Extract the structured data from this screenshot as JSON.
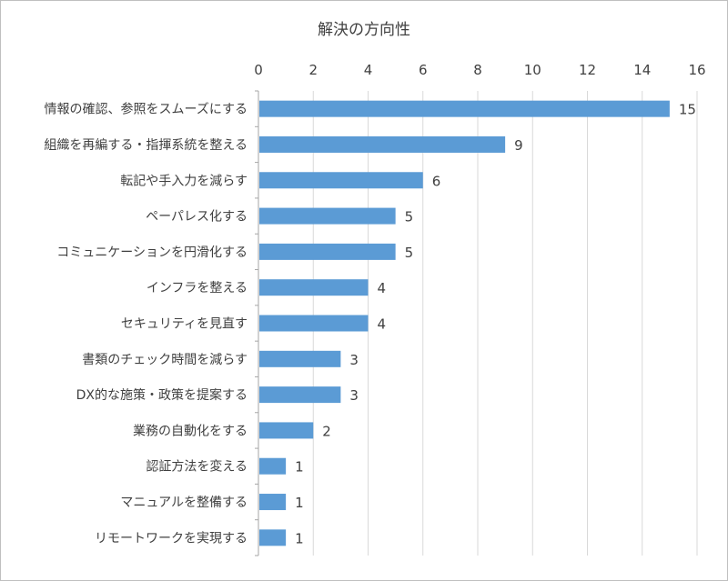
{
  "chart_data": {
    "type": "bar",
    "orientation": "horizontal",
    "title": "解決の方向性",
    "xlabel": "",
    "ylabel": "",
    "xlim": [
      0,
      16
    ],
    "ticks": [
      "0",
      "2",
      "4",
      "6",
      "8",
      "10",
      "12",
      "14",
      "16"
    ],
    "tick_values": [
      0,
      2,
      4,
      6,
      8,
      10,
      12,
      14,
      16
    ],
    "grid": true,
    "legend": "none",
    "bar_color": "#5b9bd5",
    "axis_position": "top",
    "data_labels": true,
    "categories": [
      "情報の確認、参照をスムーズにする",
      "組織を再編する・指揮系統を整える",
      "転記や手入力を減らす",
      "ペーパレス化する",
      "コミュニケーションを円滑化する",
      "インフラを整える",
      "セキュリティを見直す",
      "書類のチェック時間を減らす",
      "DX的な施策・政策を提案する",
      "業務の自動化をする",
      "認証方法を変える",
      "マニュアルを整備する",
      "リモートワークを実現する"
    ],
    "values": [
      15,
      9,
      6,
      5,
      5,
      4,
      4,
      3,
      3,
      2,
      1,
      1,
      1
    ]
  }
}
